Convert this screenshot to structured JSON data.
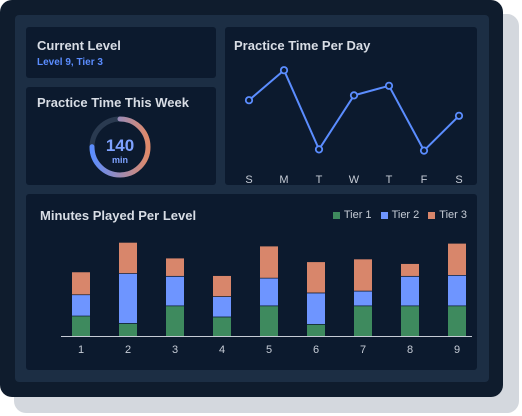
{
  "current_level": {
    "title": "Current Level",
    "value": "Level 9, Tier 3"
  },
  "weekly_practice": {
    "title": "Practice Time This Week",
    "value": "140",
    "unit": "min",
    "progress": 0.75,
    "colors": {
      "start": "#5b8dff",
      "end": "#e08a6a",
      "track": "#2a3a50"
    }
  },
  "colors": {
    "tier1": "#3e8a5e",
    "tier2": "#6e95ff",
    "tier3": "#d8866b",
    "line": "#5b8dff",
    "text": "#d8dde5",
    "axis": "#c6ccd6"
  },
  "chart_data": [
    {
      "type": "line",
      "title": "Practice Time Per Day",
      "categories": [
        "S",
        "M",
        "T",
        "W",
        "T",
        "F",
        "S"
      ],
      "values": [
        0.64,
        0.89,
        0.23,
        0.68,
        0.76,
        0.22,
        0.51
      ],
      "ylim": [
        0,
        1
      ],
      "grid": false,
      "legend": "none"
    },
    {
      "type": "bar",
      "stacked": true,
      "title": "Minutes Played Per Level",
      "categories": [
        "1",
        "2",
        "3",
        "4",
        "5",
        "6",
        "7",
        "8",
        "9"
      ],
      "series": [
        {
          "name": "Tier 1",
          "values": [
            0.22,
            0.14,
            0.33,
            0.21,
            0.33,
            0.13,
            0.33,
            0.33,
            0.33
          ]
        },
        {
          "name": "Tier 2",
          "values": [
            0.23,
            0.54,
            0.32,
            0.22,
            0.3,
            0.34,
            0.16,
            0.32,
            0.33
          ]
        },
        {
          "name": "Tier 3",
          "values": [
            0.24,
            0.33,
            0.19,
            0.22,
            0.34,
            0.33,
            0.34,
            0.13,
            0.34
          ]
        }
      ],
      "ylim": [
        0,
        1.05
      ],
      "grid": false,
      "legend": "top-right"
    }
  ]
}
